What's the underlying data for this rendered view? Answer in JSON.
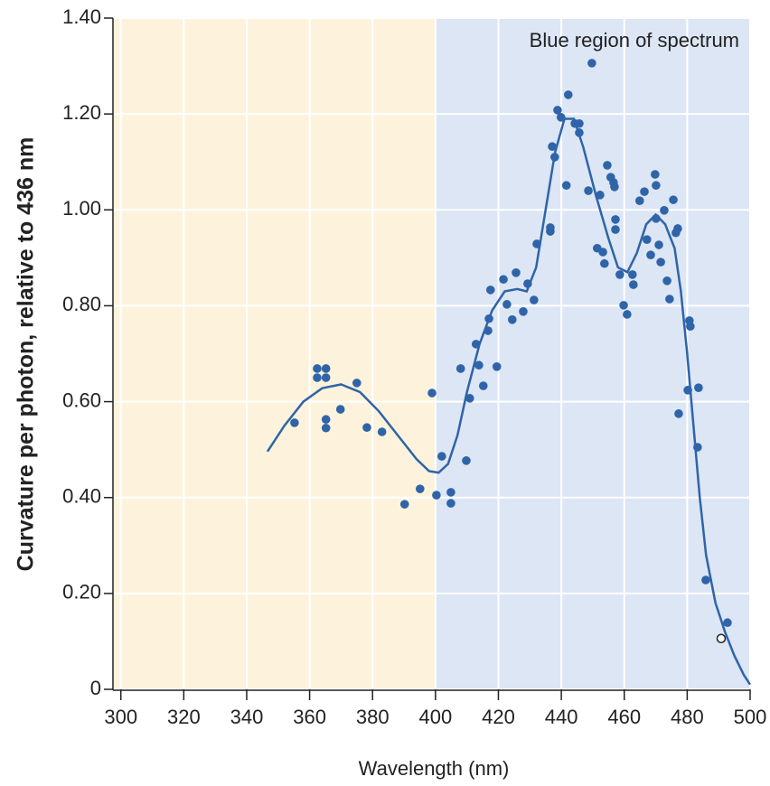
{
  "chart_data": {
    "type": "scatter",
    "xlabel": "Wavelength (nm)",
    "ylabel": "Curvature per photon, relative to 436 nm",
    "annotation": "Blue region of spectrum",
    "xlim": [
      297.5,
      500
    ],
    "ylim": [
      0,
      1.4
    ],
    "xticks": [
      300,
      320,
      340,
      360,
      380,
      400,
      420,
      440,
      460,
      480,
      500
    ],
    "yticks": [
      0,
      {
        "value": 0.2,
        "label": "0.20"
      },
      {
        "value": 0.4,
        "label": "0.40"
      },
      {
        "value": 0.6,
        "label": "0.60"
      },
      {
        "value": 0.8,
        "label": "0.80"
      },
      {
        "value": 1.0,
        "label": "1.00"
      },
      {
        "value": 1.2,
        "label": "1.20"
      },
      {
        "value": 1.4,
        "label": "1.40"
      }
    ],
    "grid": true,
    "shaded_regions": [
      {
        "x": [
          297.5,
          400
        ],
        "color": "#fdf3dc"
      },
      {
        "x": [
          400,
          500
        ],
        "color": "#dce6f5"
      }
    ],
    "color": "#2f64a8",
    "x": [
      355.2,
      362.4,
      362.4,
      365.2,
      365.2,
      365.2,
      365.2,
      369.8,
      375,
      378.2,
      383,
      390.2,
      395.1,
      398.9,
      400.3,
      402,
      404.9,
      404.9,
      408,
      409.8,
      410.9,
      412.9,
      413.8,
      415.2,
      416.7,
      417,
      417.5,
      419.5,
      421.6,
      422.7,
      424.4,
      425.6,
      427.9,
      429.3,
      431.3,
      432.2,
      436.5,
      436.5,
      437.1,
      437.9,
      438.8,
      439.9,
      441.6,
      442.2,
      444.3,
      445.7,
      445.7,
      448.6,
      449.7,
      451.4,
      452.3,
      453.2,
      453.7,
      454.6,
      455.7,
      456.6,
      456.9,
      457.2,
      457.2,
      458.6,
      459.8,
      460.9,
      462.6,
      462.9,
      464.9,
      466.4,
      467.2,
      468.4,
      469.8,
      470.1,
      470.1,
      471,
      471.6,
      472.7,
      473.6,
      474.4,
      475.6,
      476.4,
      477,
      477.3,
      480.7,
      481,
      480.2,
      483.6,
      483.3,
      485.9,
      492.8
    ],
    "values": [
      0.556,
      0.669,
      0.65,
      0.669,
      0.65,
      0.563,
      0.545,
      0.584,
      0.639,
      0.546,
      0.537,
      0.386,
      0.418,
      0.618,
      0.405,
      0.486,
      0.411,
      0.388,
      0.669,
      0.477,
      0.607,
      0.72,
      0.676,
      0.633,
      0.748,
      0.773,
      0.833,
      0.673,
      0.855,
      0.803,
      0.771,
      0.869,
      0.788,
      0.846,
      0.812,
      0.929,
      0.963,
      0.955,
      1.132,
      1.11,
      1.208,
      1.193,
      1.051,
      1.24,
      1.18,
      1.18,
      1.161,
      1.04,
      1.306,
      0.92,
      1.031,
      0.912,
      0.888,
      1.093,
      1.068,
      1.057,
      1.048,
      0.98,
      0.959,
      0.865,
      0.801,
      0.782,
      0.865,
      0.844,
      1.019,
      1.038,
      0.938,
      0.906,
      1.074,
      1.051,
      0.982,
      0.927,
      0.891,
      0.999,
      0.852,
      0.814,
      1.021,
      0.952,
      0.961,
      0.575,
      0.769,
      0.757,
      0.624,
      0.629,
      0.505,
      0.228,
      0.139
    ],
    "open_point": {
      "x": [
        490.8
      ],
      "values": [
        0.106
      ]
    },
    "curve": {
      "x": [
        346.6,
        352,
        358,
        364,
        370,
        376,
        382,
        388,
        394,
        398,
        401,
        404,
        407,
        410,
        414,
        418,
        422,
        426,
        429,
        432,
        435,
        438,
        441,
        444,
        447,
        451,
        455,
        458,
        461,
        464,
        467,
        470,
        473,
        476,
        478,
        480,
        482,
        484,
        486,
        489,
        492,
        495,
        498,
        500
      ],
      "values": [
        0.496,
        0.55,
        0.6,
        0.628,
        0.636,
        0.62,
        0.58,
        0.53,
        0.48,
        0.455,
        0.452,
        0.47,
        0.53,
        0.62,
        0.72,
        0.79,
        0.83,
        0.835,
        0.83,
        0.88,
        1.0,
        1.12,
        1.19,
        1.19,
        1.13,
        1.03,
        0.94,
        0.88,
        0.87,
        0.91,
        0.97,
        0.99,
        0.97,
        0.92,
        0.83,
        0.7,
        0.55,
        0.4,
        0.28,
        0.18,
        0.12,
        0.07,
        0.03,
        0.01
      ]
    }
  }
}
